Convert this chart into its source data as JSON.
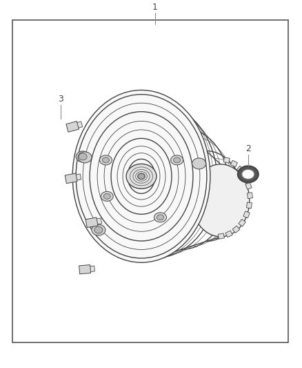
{
  "fig_width": 4.38,
  "fig_height": 5.33,
  "dpi": 100,
  "bg_color": "#ffffff",
  "border_color": "#555555",
  "border_lw": 1.2,
  "line_color": "#444444",
  "label_1": "1",
  "label_2": "2",
  "label_3": "3",
  "font_size_labels": 9,
  "font_family": "sans-serif"
}
